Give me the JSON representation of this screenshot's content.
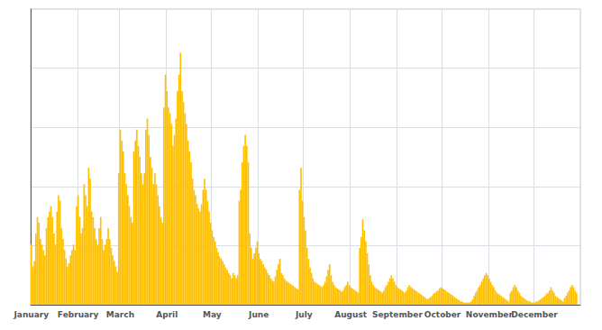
{
  "chart_data": {
    "type": "bar",
    "categories": [
      "January",
      null,
      null,
      null,
      null,
      null,
      null,
      null,
      null,
      null,
      null,
      null,
      null,
      null,
      null,
      null,
      null,
      null,
      null,
      null,
      null,
      null,
      null,
      null,
      null,
      null,
      null,
      null,
      null,
      null,
      null,
      "February",
      null,
      null,
      null,
      null,
      null,
      null,
      null,
      null,
      null,
      null,
      null,
      null,
      null,
      null,
      null,
      null,
      null,
      null,
      null,
      null,
      null,
      null,
      null,
      null,
      null,
      null,
      null,
      "March",
      null,
      null,
      null,
      null,
      null,
      null,
      null,
      null,
      null,
      null,
      null,
      null,
      null,
      null,
      null,
      null,
      null,
      null,
      null,
      null,
      null,
      null,
      null,
      null,
      null,
      null,
      null,
      null,
      null,
      null,
      "April",
      null,
      null,
      null,
      null,
      null,
      null,
      null,
      null,
      null,
      null,
      null,
      null,
      null,
      null,
      null,
      null,
      null,
      null,
      null,
      null,
      null,
      null,
      null,
      null,
      null,
      null,
      null,
      null,
      null,
      "May",
      null,
      null,
      null,
      null,
      null,
      null,
      null,
      null,
      null,
      null,
      null,
      null,
      null,
      null,
      null,
      null,
      null,
      null,
      null,
      null,
      null,
      null,
      null,
      null,
      null,
      null,
      null,
      null,
      null,
      null,
      "June",
      null,
      null,
      null,
      null,
      null,
      null,
      null,
      null,
      null,
      null,
      null,
      null,
      null,
      null,
      null,
      null,
      null,
      null,
      null,
      null,
      null,
      null,
      null,
      null,
      null,
      null,
      null,
      null,
      null,
      "July",
      null,
      null,
      null,
      null,
      null,
      null,
      null,
      null,
      null,
      null,
      null,
      null,
      null,
      null,
      null,
      null,
      null,
      null,
      null,
      null,
      null,
      null,
      null,
      null,
      null,
      null,
      null,
      null,
      null,
      null,
      "August",
      null,
      null,
      null,
      null,
      null,
      null,
      null,
      null,
      null,
      null,
      null,
      null,
      null,
      null,
      null,
      null,
      null,
      null,
      null,
      null,
      null,
      null,
      null,
      null,
      null,
      null,
      null,
      null,
      null,
      null,
      "September",
      null,
      null,
      null,
      null,
      null,
      null,
      null,
      null,
      null,
      null,
      null,
      null,
      null,
      null,
      null,
      null,
      null,
      null,
      null,
      null,
      null,
      null,
      null,
      null,
      null,
      null,
      null,
      null,
      null,
      "October",
      null,
      null,
      null,
      null,
      null,
      null,
      null,
      null,
      null,
      null,
      null,
      null,
      null,
      null,
      null,
      null,
      null,
      null,
      null,
      null,
      null,
      null,
      null,
      null,
      null,
      null,
      null,
      null,
      null,
      null,
      "November",
      null,
      null,
      null,
      null,
      null,
      null,
      null,
      null,
      null,
      null,
      null,
      null,
      null,
      null,
      null,
      null,
      null,
      null,
      null,
      null,
      null,
      null,
      null,
      null,
      null,
      null,
      null,
      null,
      null,
      "December",
      null,
      null,
      null,
      null,
      null,
      null,
      null,
      null,
      null,
      null,
      null,
      null,
      null,
      null,
      null,
      null,
      null,
      null,
      null,
      null,
      null,
      null,
      null,
      null,
      null,
      null,
      null,
      null,
      null,
      null
    ],
    "values": [
      55,
      35,
      40,
      65,
      80,
      75,
      60,
      55,
      50,
      45,
      70,
      80,
      85,
      90,
      80,
      65,
      55,
      85,
      100,
      95,
      70,
      60,
      50,
      42,
      35,
      38,
      45,
      50,
      55,
      50,
      90,
      100,
      80,
      65,
      70,
      110,
      100,
      90,
      125,
      115,
      85,
      80,
      70,
      60,
      55,
      70,
      80,
      60,
      50,
      55,
      60,
      70,
      60,
      52,
      45,
      40,
      35,
      30,
      120,
      160,
      150,
      140,
      120,
      110,
      100,
      90,
      80,
      75,
      140,
      150,
      160,
      145,
      135,
      120,
      110,
      120,
      160,
      170,
      155,
      135,
      125,
      110,
      120,
      110,
      100,
      90,
      80,
      75,
      180,
      210,
      195,
      180,
      175,
      165,
      145,
      155,
      170,
      195,
      210,
      230,
      195,
      185,
      175,
      165,
      150,
      140,
      130,
      115,
      105,
      100,
      92,
      88,
      85,
      92,
      105,
      115,
      105,
      95,
      85,
      75,
      68,
      62,
      58,
      52,
      48,
      44,
      42,
      40,
      37,
      34,
      32,
      29,
      27,
      24,
      29,
      27,
      24,
      27,
      95,
      105,
      130,
      145,
      155,
      145,
      130,
      65,
      52,
      42,
      47,
      52,
      58,
      47,
      42,
      40,
      37,
      34,
      32,
      29,
      27,
      24,
      22,
      21,
      26,
      32,
      37,
      42,
      29,
      27,
      24,
      22,
      21,
      20,
      19,
      18,
      17,
      16,
      15,
      14,
      105,
      125,
      95,
      80,
      68,
      52,
      42,
      34,
      29,
      24,
      21,
      20,
      19,
      18,
      17,
      16,
      18,
      21,
      26,
      32,
      37,
      27,
      21,
      18,
      16,
      15,
      14,
      13,
      12,
      13,
      16,
      18,
      21,
      18,
      16,
      15,
      14,
      13,
      12,
      11,
      52,
      62,
      78,
      68,
      58,
      47,
      37,
      27,
      21,
      18,
      16,
      15,
      14,
      13,
      12,
      11,
      13,
      16,
      18,
      21,
      24,
      27,
      24,
      21,
      18,
      16,
      15,
      14,
      13,
      12,
      11,
      13,
      16,
      18,
      16,
      15,
      14,
      13,
      12,
      11,
      10,
      9,
      8,
      7,
      6,
      5,
      6,
      7,
      8,
      10,
      11,
      12,
      13,
      15,
      16,
      15,
      14,
      13,
      12,
      11,
      10,
      9,
      8,
      7,
      6,
      5,
      4,
      3,
      3,
      2,
      2,
      2,
      2,
      2,
      3,
      5,
      8,
      11,
      13,
      16,
      18,
      21,
      24,
      27,
      29,
      27,
      24,
      21,
      18,
      16,
      13,
      11,
      10,
      9,
      8,
      7,
      6,
      5,
      4,
      3,
      11,
      13,
      16,
      18,
      16,
      13,
      11,
      8,
      7,
      6,
      5,
      4,
      3,
      3,
      2,
      2,
      2,
      3,
      3,
      4,
      5,
      6,
      7,
      8,
      10,
      11,
      13,
      16,
      13,
      11,
      8,
      7,
      6,
      5,
      4,
      3,
      6,
      8,
      11,
      13,
      16,
      18,
      16,
      13,
      11,
      null,
      null
    ],
    "color": "#FFC000",
    "ylim": [
      0,
      270
    ],
    "yticks": [
      0,
      54,
      108,
      162,
      216,
      270
    ],
    "grid": true,
    "tick_labels": "x"
  }
}
